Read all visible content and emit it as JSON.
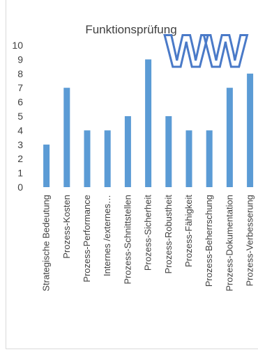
{
  "chart_data": {
    "type": "bar",
    "title": "Funktionsprüfung",
    "categories": [
      "Strategische Bedeutung",
      "Prozess-Kosten",
      "Prozess-Performance",
      "Internes /externes…",
      "Prozess-Schnittstellen",
      "Prozess-Sicherheit",
      "Prozess-Robustheit",
      "Prozess-Fähigkeit",
      "Prozess-Beherrschung",
      "Prozess-Dokumentation",
      "Prozess-Verbesserung"
    ],
    "values": [
      3,
      7,
      4,
      4,
      5,
      9,
      5,
      4,
      4,
      7,
      8
    ],
    "ylim": [
      0,
      10
    ],
    "yticks": [
      "0",
      "1",
      "2",
      "3",
      "4",
      "5",
      "6",
      "7",
      "8",
      "9",
      "10"
    ],
    "grid": false,
    "bar_color": "#5b9bd5",
    "overlay_text": "WW"
  }
}
